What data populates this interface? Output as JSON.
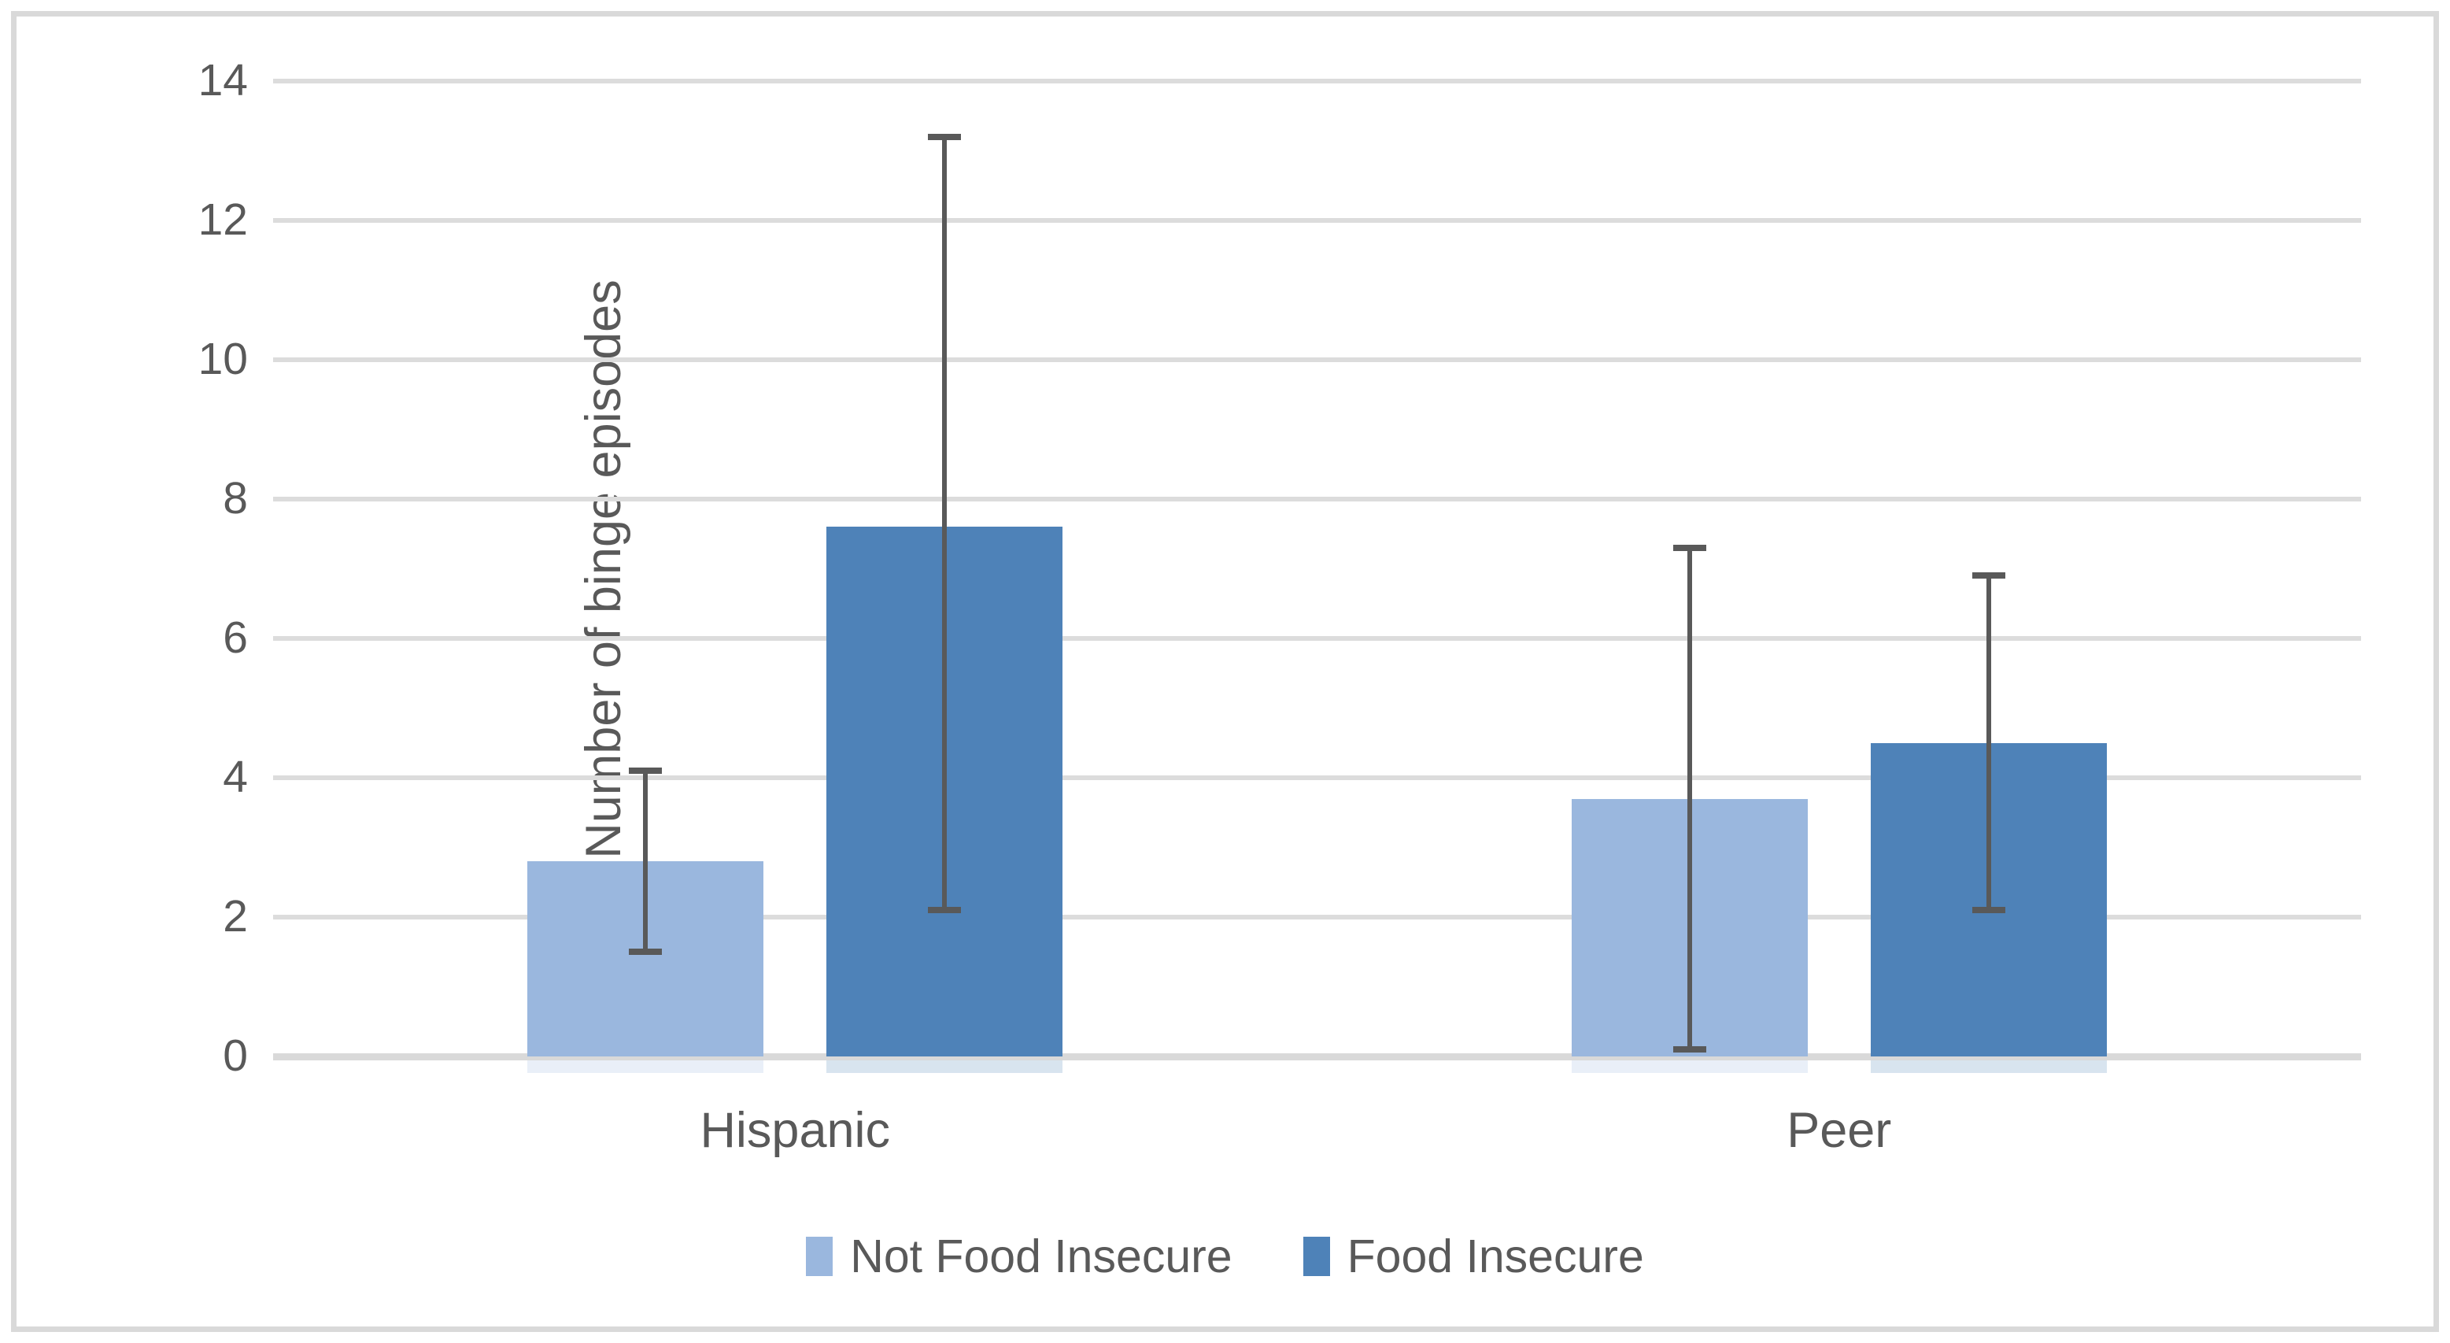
{
  "figure": {
    "background_color": "#FFFFFF",
    "border_color": "#D9D9D9",
    "gridline_color": "#DCDCDC",
    "text_color": "#595959",
    "error_bar_color": "#595959"
  },
  "chart_data": {
    "type": "bar",
    "title": "",
    "xlabel": "",
    "ylabel": "Number of binge episodes",
    "ylim": [
      0,
      14
    ],
    "yticks": [
      0,
      2,
      4,
      6,
      8,
      10,
      12,
      14
    ],
    "grid": true,
    "legend_position": "bottom",
    "categories": [
      "Hispanic",
      "Peer"
    ],
    "series": [
      {
        "name": "Not Food Insecure",
        "color": "#9AB7DE",
        "values": [
          2.8,
          3.7
        ],
        "error_low": [
          1.5,
          0.1
        ],
        "error_high": [
          4.1,
          7.3
        ]
      },
      {
        "name": "Food Insecure",
        "color": "#4E82B8",
        "values": [
          7.6,
          4.5
        ],
        "error_low": [
          2.1,
          2.1
        ],
        "error_high": [
          13.2,
          6.9
        ]
      }
    ]
  }
}
